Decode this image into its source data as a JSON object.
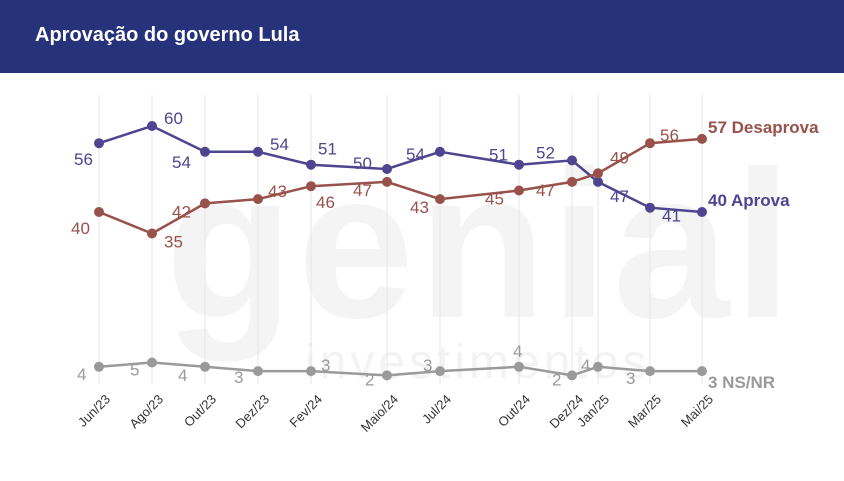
{
  "header": {
    "title": "Aprovação do governo Lula"
  },
  "watermark": {
    "main": "genial",
    "sub": "investimentos"
  },
  "colors": {
    "header_bg": "#26337a",
    "aprova": "#4e4590",
    "desaprova": "#98524b",
    "nsnr": "#9a9a9a",
    "grid": "#e6e6e6"
  },
  "chart_data": {
    "type": "line",
    "title": "Aprovação do governo Lula",
    "categories": [
      "Jun/23",
      "Ago/23",
      "Out/23",
      "Dez/23",
      "Fev/24",
      "Maio/24",
      "Jul/24",
      "Out/24",
      "Dez/24",
      "Jan/25",
      "Mar/25",
      "Mai/25"
    ],
    "series": [
      {
        "name": "Aprova",
        "end_label": "40 Aprova",
        "color": "#4e4590",
        "values": [
          56,
          60,
          54,
          54,
          51,
          50,
          54,
          51,
          52,
          47,
          41,
          40
        ],
        "point_labels": [
          "56",
          "60",
          "54",
          "54",
          "51",
          "50",
          "54",
          "51",
          "52",
          "47",
          "41",
          ""
        ]
      },
      {
        "name": "Desaprova",
        "end_label": "57 Desaprova",
        "color": "#98524b",
        "values": [
          40,
          35,
          42,
          43,
          46,
          47,
          43,
          45,
          47,
          49,
          56,
          57
        ],
        "point_labels": [
          "40",
          "35",
          "42",
          "43",
          "46",
          "47",
          "43",
          "45",
          "47",
          "49",
          "56",
          ""
        ]
      },
      {
        "name": "NS/NR",
        "end_label": "3 NS/NR",
        "color": "#9a9a9a",
        "values": [
          4,
          5,
          4,
          3,
          3,
          2,
          3,
          4,
          2,
          4,
          3,
          3
        ],
        "point_labels": [
          "4",
          "5",
          "4",
          "3",
          "3",
          "2",
          "3",
          "4",
          "2",
          "4",
          "3",
          ""
        ]
      }
    ],
    "xlabel": "",
    "ylabel": "",
    "ylim": [
      0,
      65
    ],
    "grid": "vertical"
  }
}
